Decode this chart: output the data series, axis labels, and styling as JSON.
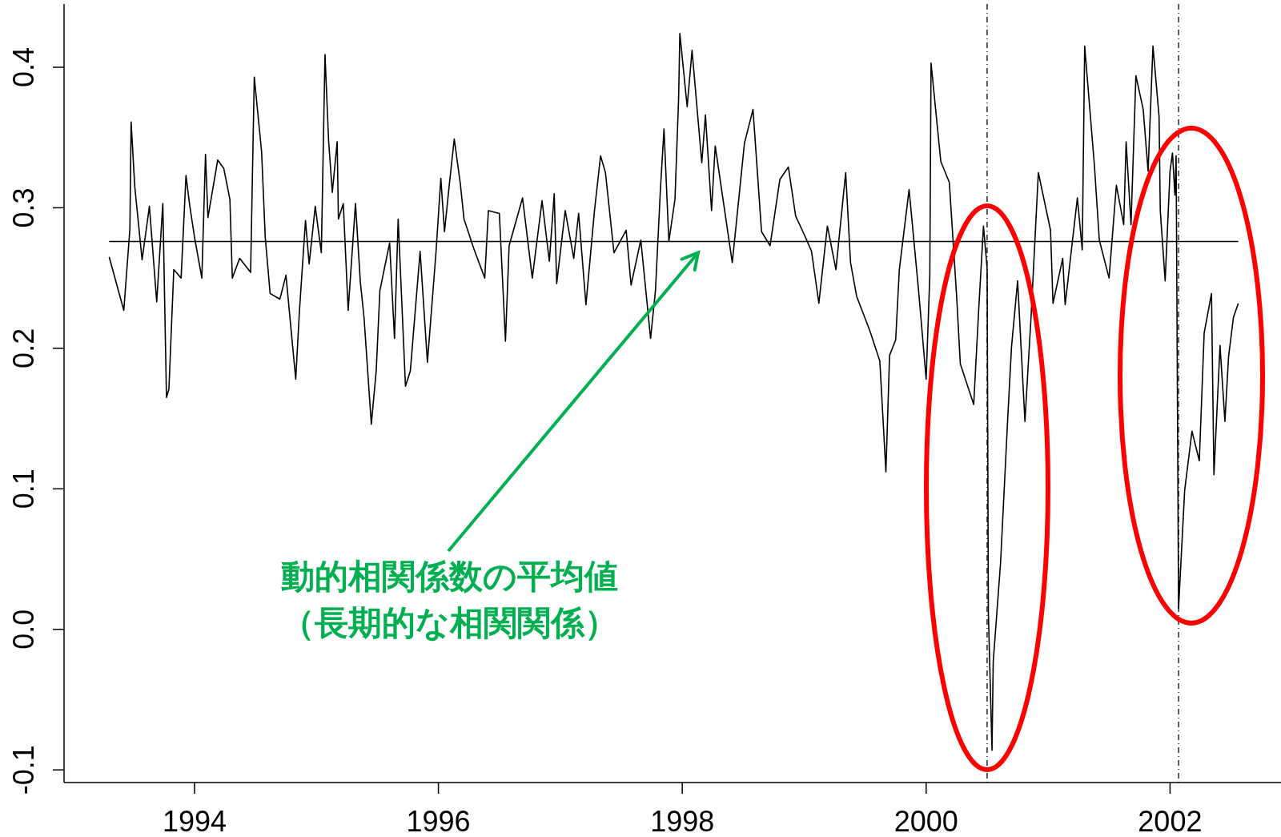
{
  "chart_data": {
    "type": "line",
    "color": "#000000",
    "line_style": "solid",
    "marker": "none",
    "grid": false,
    "xlim": [
      1992.93,
      2002.91
    ],
    "ylim": [
      -0.109,
      0.445
    ],
    "xticks": [
      1994,
      1996,
      1998,
      2000,
      2002
    ],
    "yticks": [
      -0.1,
      {
        "value": 0,
        "label": "0.0"
      },
      0.1,
      0.2,
      0.3,
      0.4
    ],
    "x": [
      1993.3,
      1993.42,
      1993.47,
      1993.48,
      1993.51,
      1993.57,
      1993.63,
      1993.69,
      1993.74,
      1993.77,
      1993.79,
      1993.83,
      1993.89,
      1993.93,
      1993.96,
      1994.0,
      1994.06,
      1994.09,
      1994.11,
      1994.19,
      1994.24,
      1994.29,
      1994.31,
      1994.37,
      1994.46,
      1994.49,
      1994.55,
      1994.58,
      1994.62,
      1994.7,
      1994.75,
      1994.83,
      1994.86,
      1994.91,
      1994.94,
      1994.99,
      1995.04,
      1995.07,
      1995.1,
      1995.13,
      1995.17,
      1995.18,
      1995.22,
      1995.26,
      1995.32,
      1995.36,
      1995.39,
      1995.45,
      1995.49,
      1995.52,
      1995.6,
      1995.64,
      1995.67,
      1995.73,
      1995.77,
      1995.85,
      1995.91,
      1995.98,
      1996.02,
      1996.05,
      1996.09,
      1996.13,
      1996.18,
      1996.21,
      1996.29,
      1996.38,
      1996.41,
      1996.5,
      1996.55,
      1996.58,
      1996.69,
      1996.77,
      1996.85,
      1996.91,
      1996.95,
      1996.97,
      1997.04,
      1997.11,
      1997.15,
      1997.21,
      1997.28,
      1997.33,
      1997.37,
      1997.44,
      1997.54,
      1997.58,
      1997.66,
      1997.74,
      1997.78,
      1997.82,
      1997.85,
      1997.89,
      1997.94,
      1997.97,
      1997.98,
      1998.04,
      1998.08,
      1998.16,
      1998.19,
      1998.24,
      1998.27,
      1998.41,
      1998.51,
      1998.58,
      1998.65,
      1998.72,
      1998.8,
      1998.87,
      1998.93,
      1999.0,
      1999.06,
      1999.12,
      1999.19,
      1999.26,
      1999.34,
      1999.38,
      1999.43,
      1999.54,
      1999.62,
      1999.67,
      1999.7,
      1999.75,
      1999.78,
      1999.86,
      1999.94,
      2000.0,
      2000.03,
      2000.04,
      2000.12,
      2000.19,
      2000.25,
      2000.28,
      2000.39,
      2000.43,
      2000.47,
      2000.5,
      2000.51,
      2000.54,
      2000.55,
      2000.61,
      2000.67,
      2000.7,
      2000.75,
      2000.81,
      2000.86,
      2000.92,
      2001.02,
      2001.04,
      2001.12,
      2001.14,
      2001.24,
      2001.28,
      2001.3,
      2001.38,
      2001.42,
      2001.5,
      2001.56,
      2001.62,
      2001.64,
      2001.68,
      2001.72,
      2001.78,
      2001.82,
      2001.86,
      2001.91,
      2001.92,
      2001.96,
      2002.0,
      2002.02,
      2002.04,
      2002.05,
      2002.07,
      2002.12,
      2002.18,
      2002.24,
      2002.28,
      2002.34,
      2002.36,
      2002.41,
      2002.45,
      2002.48,
      2002.52,
      2002.56
    ],
    "values": [
      0.265,
      0.227,
      0.285,
      0.361,
      0.315,
      0.263,
      0.301,
      0.233,
      0.303,
      0.165,
      0.171,
      0.256,
      0.25,
      0.323,
      0.302,
      0.279,
      0.25,
      0.338,
      0.293,
      0.334,
      0.328,
      0.306,
      0.25,
      0.264,
      0.254,
      0.393,
      0.34,
      0.279,
      0.239,
      0.235,
      0.252,
      0.178,
      0.226,
      0.291,
      0.26,
      0.301,
      0.268,
      0.409,
      0.347,
      0.311,
      0.347,
      0.292,
      0.303,
      0.227,
      0.303,
      0.247,
      0.222,
      0.146,
      0.184,
      0.241,
      0.275,
      0.207,
      0.292,
      0.173,
      0.184,
      0.269,
      0.19,
      0.268,
      0.321,
      0.283,
      0.317,
      0.349,
      0.317,
      0.292,
      0.271,
      0.25,
      0.298,
      0.296,
      0.205,
      0.273,
      0.307,
      0.25,
      0.305,
      0.262,
      0.31,
      0.246,
      0.298,
      0.264,
      0.296,
      0.231,
      0.298,
      0.337,
      0.325,
      0.268,
      0.284,
      0.245,
      0.277,
      0.207,
      0.241,
      0.312,
      0.356,
      0.276,
      0.306,
      0.378,
      0.424,
      0.372,
      0.412,
      0.332,
      0.366,
      0.298,
      0.344,
      0.261,
      0.346,
      0.37,
      0.283,
      0.273,
      0.32,
      0.329,
      0.294,
      0.281,
      0.269,
      0.232,
      0.287,
      0.256,
      0.325,
      0.261,
      0.237,
      0.212,
      0.191,
      0.112,
      0.195,
      0.206,
      0.256,
      0.313,
      0.239,
      0.178,
      0.252,
      0.403,
      0.333,
      0.318,
      0.237,
      0.189,
      0.16,
      0.226,
      0.287,
      0.257,
      0.012,
      -0.086,
      -0.023,
      0.047,
      0.152,
      0.201,
      0.248,
      0.148,
      0.222,
      0.325,
      0.284,
      0.232,
      0.264,
      0.231,
      0.307,
      0.27,
      0.415,
      0.33,
      0.277,
      0.25,
      0.316,
      0.288,
      0.347,
      0.288,
      0.394,
      0.37,
      0.326,
      0.415,
      0.365,
      0.298,
      0.248,
      0.326,
      0.339,
      0.309,
      0.337,
      0.015,
      0.099,
      0.141,
      0.12,
      0.211,
      0.239,
      0.11,
      0.202,
      0.148,
      0.194,
      0.222,
      0.232
    ],
    "ref_lines": [
      {
        "axis": "y",
        "value": 0.276,
        "color": "#000000",
        "line_style": "solid"
      },
      {
        "axis": "x",
        "value": 2000.5,
        "color": "#000000",
        "line_style": "dashed"
      },
      {
        "axis": "x",
        "value": 2002.07,
        "color": "#000000",
        "line_style": "dashed"
      }
    ],
    "annotations": [
      "動的相関係数の平均値",
      "（長期的な相関関係）"
    ]
  }
}
